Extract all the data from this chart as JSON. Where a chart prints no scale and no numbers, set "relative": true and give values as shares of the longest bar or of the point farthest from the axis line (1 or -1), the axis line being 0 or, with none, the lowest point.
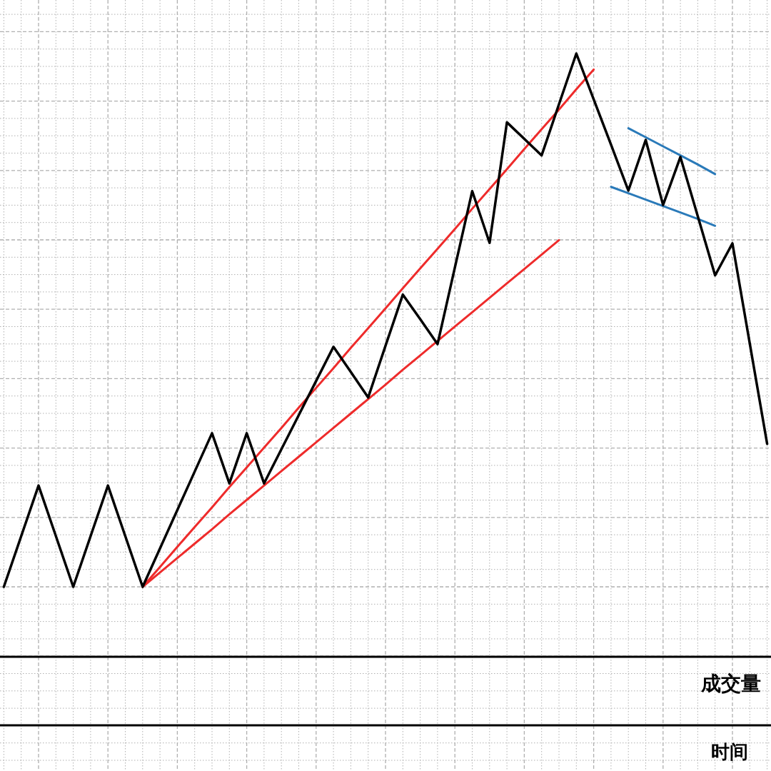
{
  "chart_data": {
    "type": "line",
    "relative": true,
    "grid": true,
    "categories": [
      null,
      null,
      null,
      null,
      null,
      null,
      null,
      null,
      null,
      null,
      null,
      null,
      null,
      null,
      null,
      null,
      null,
      null,
      null,
      null,
      null,
      null,
      null,
      null,
      null,
      null,
      null,
      null,
      null,
      null,
      null,
      null,
      null,
      null,
      null,
      null,
      null,
      null,
      null,
      null,
      null,
      null,
      null,
      null,
      null
    ],
    "annotations": [
      "成交量",
      "时间"
    ],
    "series": [
      {
        "color": "#000000",
        "values": [
          0,
          0.095,
          0.19,
          0.095,
          0,
          0.095,
          0.19,
          0.095,
          0,
          0.072,
          0.144,
          0.216,
          0.288,
          0.194,
          0.288,
          0.194,
          0.258,
          0.322,
          0.386,
          0.45,
          0.403,
          0.355,
          0.452,
          0.548,
          0.502,
          0.455,
          0.599,
          0.742,
          0.645,
          0.871,
          0.84,
          0.809,
          0.905,
          1,
          0.914,
          0.829,
          0.743,
          0.838,
          0.716,
          0.806,
          0.695,
          0.584,
          0.644,
          0.456,
          0.268
        ]
      },
      {
        "color": "#ee2b2b",
        "values": [
          null,
          null,
          null,
          null,
          null,
          null,
          null,
          null,
          0,
          0.027,
          0.054,
          0.081,
          0.108,
          0.136,
          0.163,
          0.19,
          0.217,
          0.244,
          0.271,
          0.298,
          0.325,
          0.352,
          0.379,
          0.407,
          0.434,
          0.461,
          0.488,
          0.515,
          0.542,
          0.569,
          0.596,
          0.623,
          0.65,
          null,
          null,
          null,
          null,
          null,
          null,
          null,
          null,
          null,
          null,
          null,
          null
        ]
      },
      {
        "color": "#ee2b2b",
        "values": [
          null,
          null,
          null,
          null,
          null,
          null,
          null,
          null,
          0,
          0.037,
          0.075,
          0.112,
          0.149,
          0.187,
          0.224,
          0.261,
          0.298,
          0.336,
          0.373,
          0.41,
          0.448,
          0.485,
          0.522,
          0.56,
          0.597,
          0.634,
          0.671,
          0.709,
          0.746,
          0.783,
          0.821,
          0.858,
          0.895,
          0.933,
          0.97,
          null,
          null,
          null,
          null,
          null,
          null,
          null,
          null,
          null,
          null
        ]
      },
      {
        "color": "#2a7ab9",
        "values": [
          null,
          null,
          null,
          null,
          null,
          null,
          null,
          null,
          null,
          null,
          null,
          null,
          null,
          null,
          null,
          null,
          null,
          null,
          null,
          null,
          null,
          null,
          null,
          null,
          null,
          null,
          null,
          null,
          null,
          null,
          null,
          null,
          null,
          null,
          null,
          null,
          0.86,
          0.843,
          0.826,
          0.809,
          0.792,
          0.774,
          null,
          null,
          null
        ]
      },
      {
        "color": "#2a7ab9",
        "values": [
          null,
          null,
          null,
          null,
          null,
          null,
          null,
          null,
          null,
          null,
          null,
          null,
          null,
          null,
          null,
          null,
          null,
          null,
          null,
          null,
          null,
          null,
          null,
          null,
          null,
          null,
          null,
          null,
          null,
          null,
          null,
          null,
          null,
          null,
          null,
          0.75,
          0.738,
          0.726,
          0.714,
          0.702,
          0.69,
          0.677,
          null,
          null,
          null
        ]
      }
    ]
  }
}
